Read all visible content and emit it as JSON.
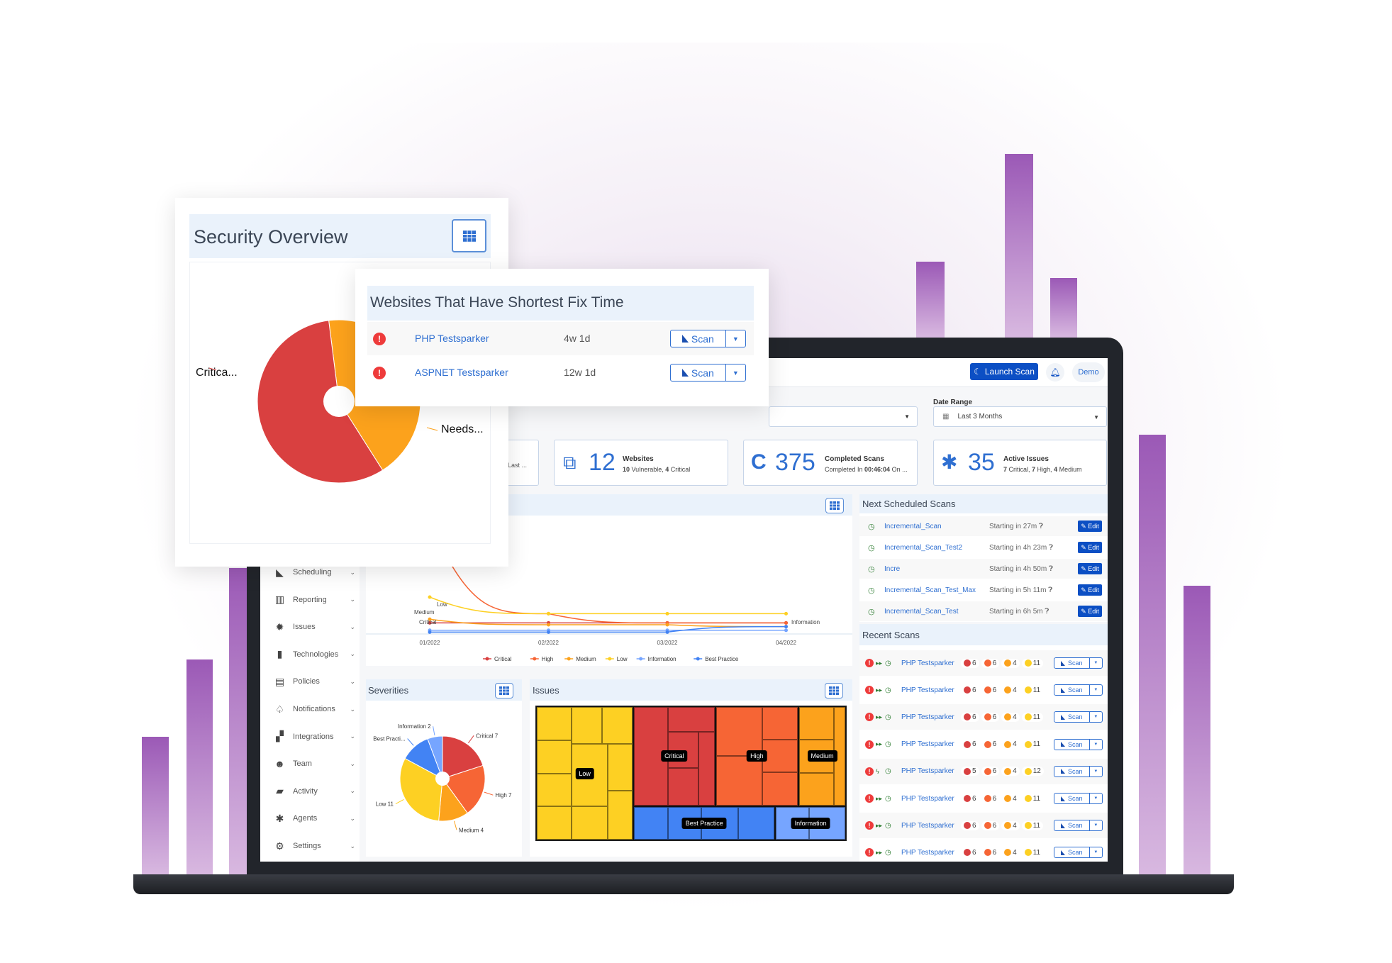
{
  "colors": {
    "accent": "#0c4fc4",
    "link": "#2f6fd1",
    "critical": "#d94040",
    "high": "#f66535",
    "medium": "#fca21c",
    "low": "#fdd023",
    "information": "#76a5ff",
    "best_practice": "#4283f4",
    "brand_purple": "#9b59b6"
  },
  "topbar": {
    "launch_scan": "Launch Scan",
    "launch_icon": "scan-logo-icon",
    "bell_icon": "bell-icon",
    "user": "Demo"
  },
  "filters": {
    "date_range_label": "Date Range",
    "date_range_value": "Last 3 Months"
  },
  "stats": [
    {
      "icon": "ellipsis",
      "number": "",
      "title": "",
      "sub": "Last ..."
    },
    {
      "icon": "websites-icon",
      "number": "12",
      "title": "Websites",
      "sub_b1": "10",
      "sub_t1": " Vulnerable, ",
      "sub_b2": "4",
      "sub_t2": " Critical"
    },
    {
      "icon": "scan-logo-icon",
      "number": "375",
      "title": "Completed Scans",
      "sub_t1": "Completed In ",
      "sub_b1": "00:46:04",
      "sub_t2": " On ..."
    },
    {
      "icon": "bug-icon",
      "number": "35",
      "title": "Active Issues",
      "sub_b1": "7",
      "sub_t1": " Critical, ",
      "sub_b2": "7",
      "sub_t2": " High, ",
      "sub_b3": "4",
      "sub_t3": " Medium"
    }
  ],
  "sidebar": {
    "items": [
      {
        "label": "Scheduling",
        "icon": "scheduling-icon"
      },
      {
        "label": "Reporting",
        "icon": "reporting-icon"
      },
      {
        "label": "Issues",
        "icon": "bug-icon"
      },
      {
        "label": "Technologies",
        "icon": "chip-icon"
      },
      {
        "label": "Policies",
        "icon": "clipboard-icon"
      },
      {
        "label": "Notifications",
        "icon": "bell-icon"
      },
      {
        "label": "Integrations",
        "icon": "puzzle-icon"
      },
      {
        "label": "Team",
        "icon": "users-icon"
      },
      {
        "label": "Activity",
        "icon": "book-icon"
      },
      {
        "label": "Agents",
        "icon": "asterisk-icon"
      },
      {
        "label": "Settings",
        "icon": "gear-icon"
      }
    ]
  },
  "security_overview": {
    "title": "Security Overview",
    "labels": [
      "Critica...",
      "Needs..."
    ]
  },
  "shortest_fix": {
    "title": "Websites That Have Shortest Fix Time",
    "scan_label": "Scan",
    "rows": [
      {
        "name": "PHP Testsparker",
        "time": "4w 1d"
      },
      {
        "name": "ASPNET Testsparker",
        "time": "12w 1d"
      }
    ]
  },
  "next_scheduled": {
    "title": "Next Scheduled Scans",
    "edit_label": "Edit",
    "rows": [
      {
        "name": "Incremental_Scan",
        "start": "Starting in 27m"
      },
      {
        "name": "Incremental_Scan_Test2",
        "start": "Starting in 4h 23m"
      },
      {
        "name": "Incre",
        "start": "Starting in 4h 50m"
      },
      {
        "name": "Incremental_Scan_Test_Max",
        "start": "Starting in 5h 11m"
      },
      {
        "name": "Incremental_Scan_Test",
        "start": "Starting in 6h 5m"
      }
    ]
  },
  "recent_scans": {
    "title": "Recent Scans",
    "scan_label": "Scan",
    "rows": [
      {
        "name": "PHP Testsparker",
        "mode": "fast-forward",
        "c": "6",
        "h": "6",
        "m": "4",
        "l": "11"
      },
      {
        "name": "PHP Testsparker",
        "mode": "fast-forward",
        "c": "6",
        "h": "6",
        "m": "4",
        "l": "11"
      },
      {
        "name": "PHP Testsparker",
        "mode": "fast-forward",
        "c": "6",
        "h": "6",
        "m": "4",
        "l": "11"
      },
      {
        "name": "PHP Testsparker",
        "mode": "fast-forward",
        "c": "6",
        "h": "6",
        "m": "4",
        "l": "11"
      },
      {
        "name": "PHP Testsparker",
        "mode": "bolt",
        "c": "5",
        "h": "6",
        "m": "4",
        "l": "12"
      },
      {
        "name": "PHP Testsparker",
        "mode": "fast-forward",
        "c": "6",
        "h": "6",
        "m": "4",
        "l": "11"
      },
      {
        "name": "PHP Testsparker",
        "mode": "fast-forward",
        "c": "6",
        "h": "6",
        "m": "4",
        "l": "11"
      },
      {
        "name": "PHP Testsparker",
        "mode": "fast-forward",
        "c": "6",
        "h": "6",
        "m": "4",
        "l": "11"
      }
    ]
  },
  "severities": {
    "title": "Severities"
  },
  "issues": {
    "title": "Issues"
  },
  "chart_data": [
    {
      "type": "pie",
      "slices": [
        {
          "name": "Critica...",
          "value": 57,
          "color": "#d94040"
        },
        {
          "name": "Needs...",
          "value": 43,
          "color": "#fca21c"
        }
      ]
    },
    {
      "type": "line",
      "x": [
        "01/2022",
        "02/2022",
        "03/2022",
        "04/2022"
      ],
      "series": [
        {
          "name": "Critical",
          "color": "#d94040",
          "values": [
            6,
            6,
            6,
            6
          ]
        },
        {
          "name": "High",
          "color": "#f66535",
          "values": [
            60,
            11,
            6,
            6
          ]
        },
        {
          "name": "Medium",
          "color": "#fca21c",
          "values": [
            8,
            5,
            5,
            4
          ]
        },
        {
          "name": "Low",
          "color": "#fdd023",
          "values": [
            20,
            11,
            11,
            11
          ]
        },
        {
          "name": "Information",
          "color": "#76a5ff",
          "values": [
            2,
            2,
            2,
            2
          ]
        },
        {
          "name": "Best Practice",
          "color": "#4283f4",
          "values": [
            1,
            1,
            1,
            4
          ]
        }
      ],
      "point_labels": {
        "Low": "Low",
        "Medium": "Medium",
        "Critical": "Critical",
        "Information": "Information"
      },
      "legend": "bottom"
    },
    {
      "type": "pie",
      "slices": [
        {
          "name": "Critical",
          "value": 7,
          "label": "Critical 7",
          "color": "#d94040"
        },
        {
          "name": "High",
          "value": 7,
          "label": "High 7",
          "color": "#f66535"
        },
        {
          "name": "Medium",
          "value": 4,
          "label": "Medium 4",
          "color": "#fca21c"
        },
        {
          "name": "Low",
          "value": 11,
          "label": "Low 11",
          "color": "#fdd023"
        },
        {
          "name": "Best Practice",
          "value": 4,
          "label": "Best Practi...",
          "color": "#4283f4"
        },
        {
          "name": "Information",
          "value": 2,
          "label": "Information 2",
          "color": "#76a5ff"
        }
      ]
    },
    {
      "type": "heatmap",
      "subtype": "treemap",
      "groups": [
        "Low",
        "Critical",
        "High",
        "Medium",
        "Best Practice",
        "Information"
      ]
    }
  ]
}
